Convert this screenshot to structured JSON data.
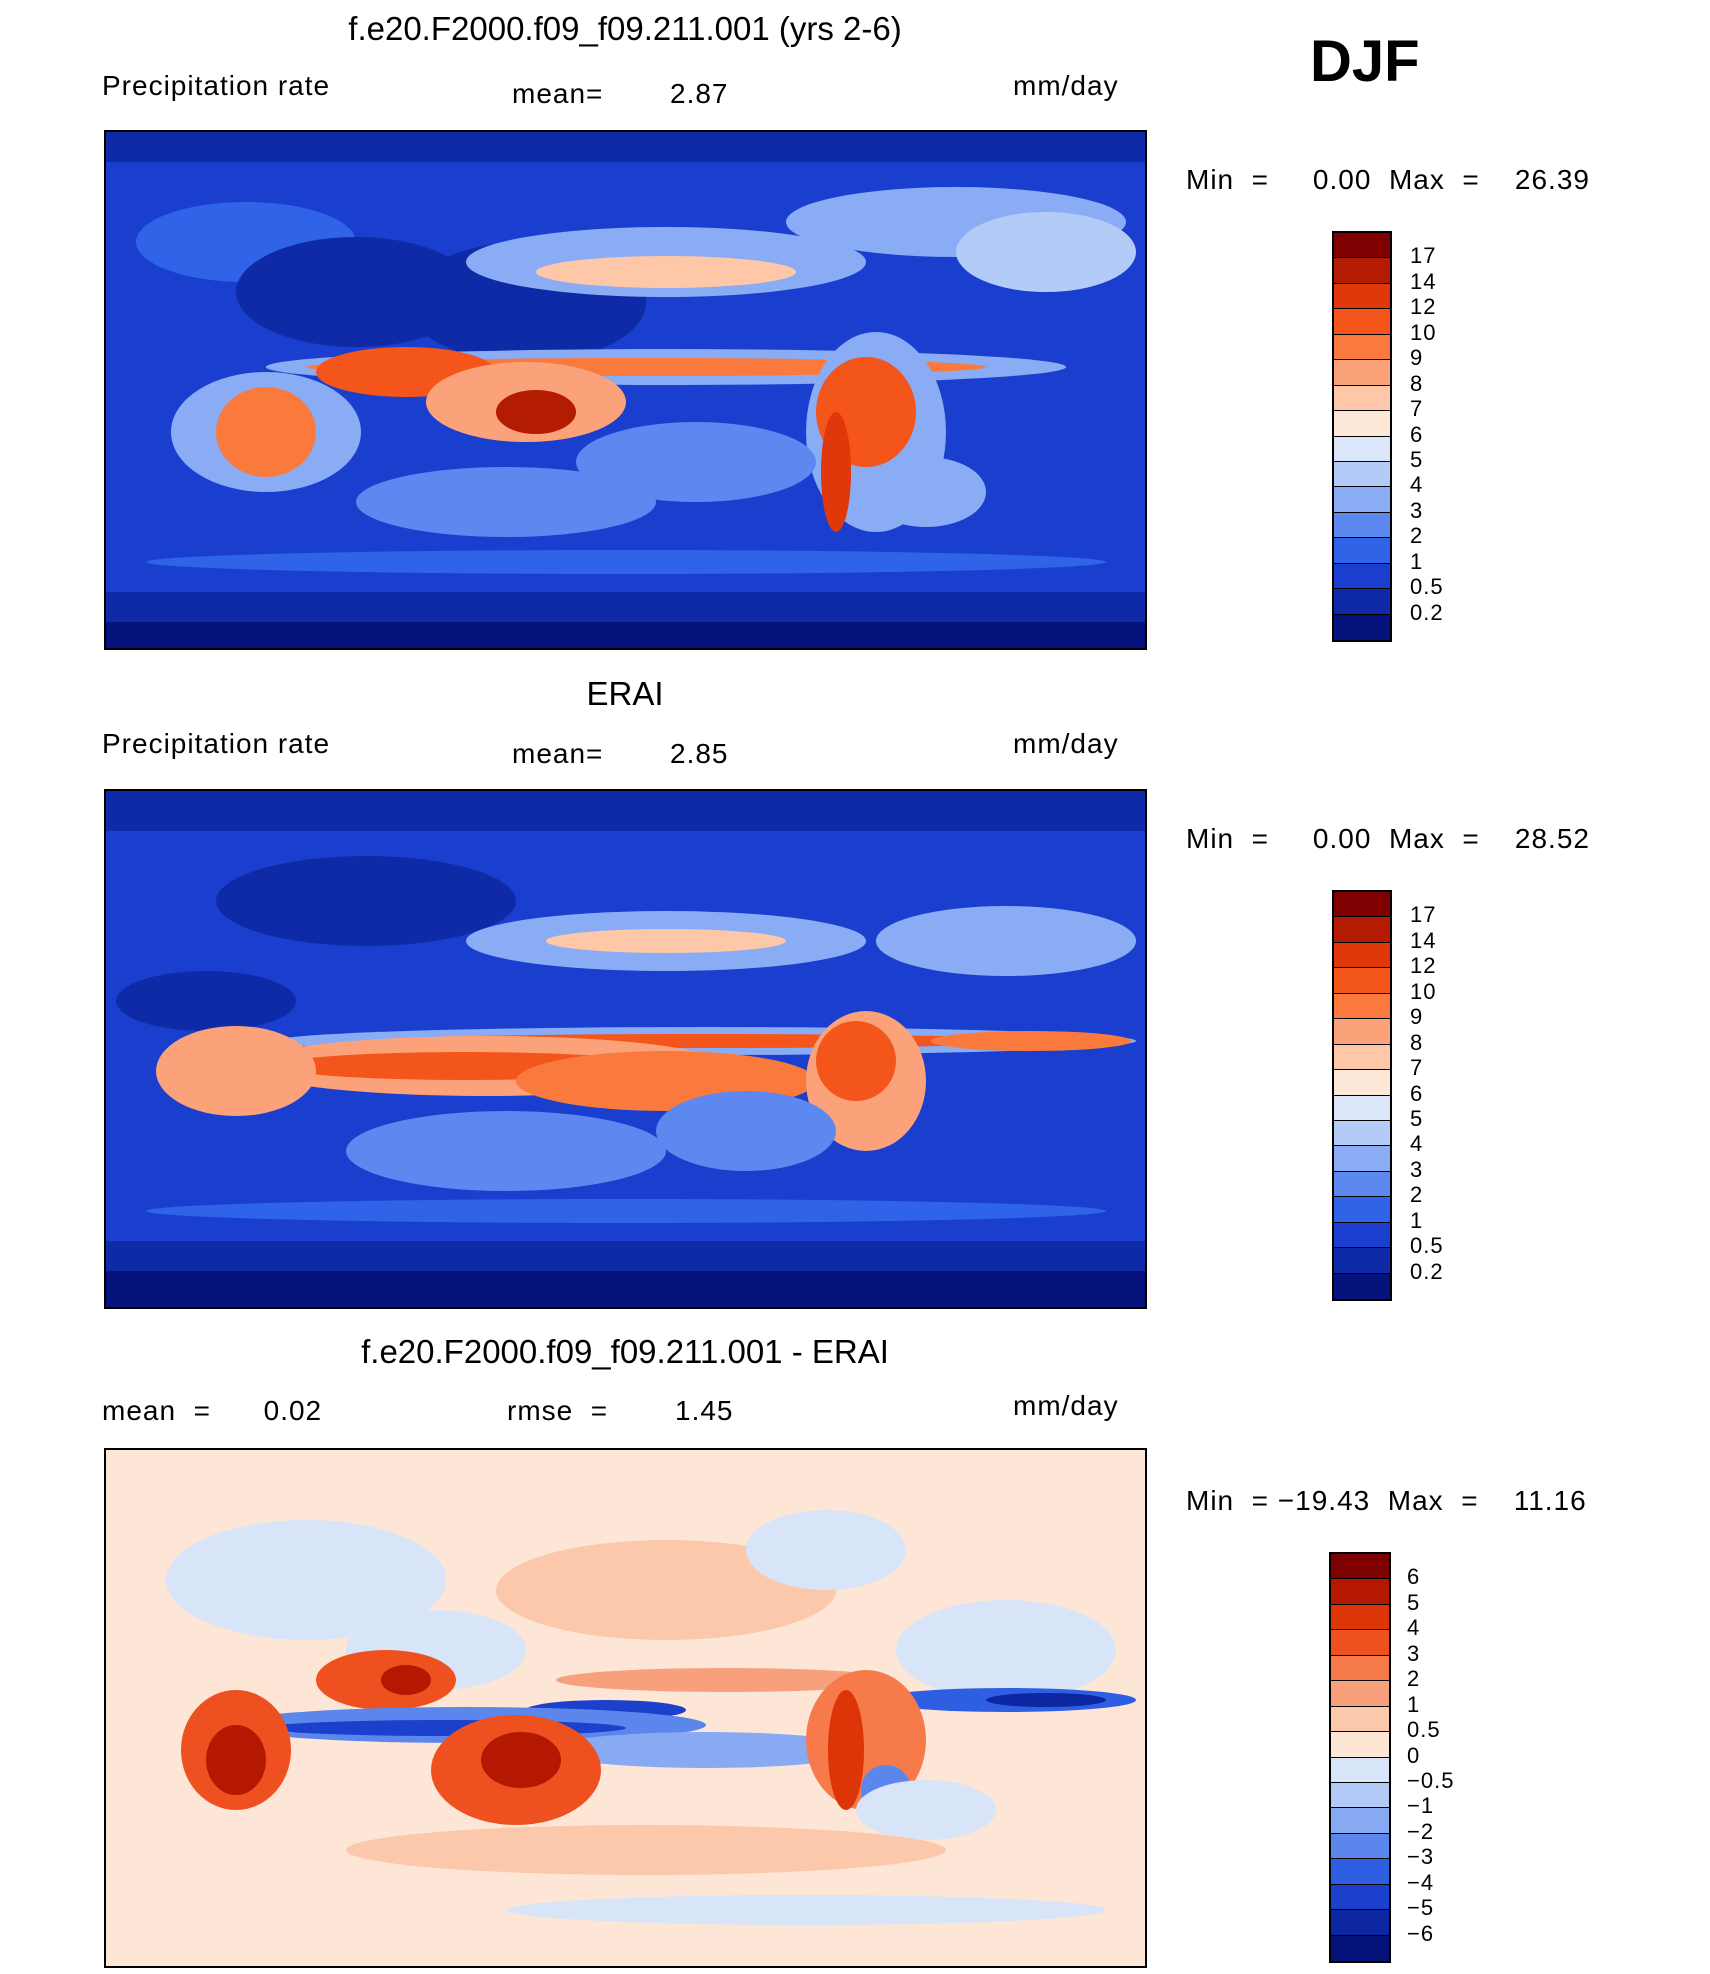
{
  "season": "DJF",
  "panels": [
    {
      "title": "f.e20.F2000.f09_f09.211.001 (yrs 2-6)",
      "left_label": "Precipitation  rate",
      "center_label": "mean=",
      "center_value": "2.87",
      "units": "mm/day",
      "minmax": "Min  =     0.00  Max  =    26.39",
      "colorbar": {
        "labels": [
          "17",
          "14",
          "12",
          "10",
          "9",
          "8",
          "7",
          "6",
          "5",
          "4",
          "3",
          "2",
          "1",
          "0.5",
          "0.2"
        ],
        "colors": [
          "#7f0000",
          "#b31c00",
          "#e0380a",
          "#f3551a",
          "#fa7a3e",
          "#fba27b",
          "#fdc7a8",
          "#fde8d8",
          "#dbe6f8",
          "#b3ccf7",
          "#89acf5",
          "#5c88ef",
          "#2f63e8",
          "#1a3fce",
          "#0f2aa6",
          "#06137c"
        ]
      }
    },
    {
      "title": "ERAI",
      "left_label": "Precipitation  rate",
      "center_label": "mean=",
      "center_value": "2.85",
      "units": "mm/day",
      "minmax": "Min  =     0.00  Max  =    28.52",
      "colorbar": {
        "labels": [
          "17",
          "14",
          "12",
          "10",
          "9",
          "8",
          "7",
          "6",
          "5",
          "4",
          "3",
          "2",
          "1",
          "0.5",
          "0.2"
        ],
        "colors": [
          "#7f0000",
          "#b31c00",
          "#e0380a",
          "#f3551a",
          "#fa7a3e",
          "#fba27b",
          "#fdc7a8",
          "#fde8d8",
          "#dbe6f8",
          "#b3ccf7",
          "#89acf5",
          "#5c88ef",
          "#2f63e8",
          "#1a3fce",
          "#0f2aa6",
          "#06137c"
        ]
      }
    },
    {
      "title": "f.e20.F2000.f09_f09.211.001 - ERAI",
      "left_label": "mean  =      0.02",
      "center_label": "rmse  =",
      "center_value": "1.45",
      "units": "mm/day",
      "minmax": "Min  = −19.43  Max  =    11.16",
      "colorbar": {
        "labels": [
          "6",
          "5",
          "4",
          "3",
          "2",
          "1",
          "0.5",
          "0",
          "−0.5",
          "−1",
          "−2",
          "−3",
          "−4",
          "−5",
          "−6"
        ],
        "colors": [
          "#7f0000",
          "#b51800",
          "#dd3408",
          "#ef5020",
          "#f67a4a",
          "#f8a07c",
          "#fbc8ac",
          "#fde6d6",
          "#d8e4f8",
          "#b2cbf6",
          "#88aaf2",
          "#5b86ec",
          "#2e5fe3",
          "#1a40cc",
          "#0d26a2",
          "#04127a"
        ]
      }
    }
  ]
}
